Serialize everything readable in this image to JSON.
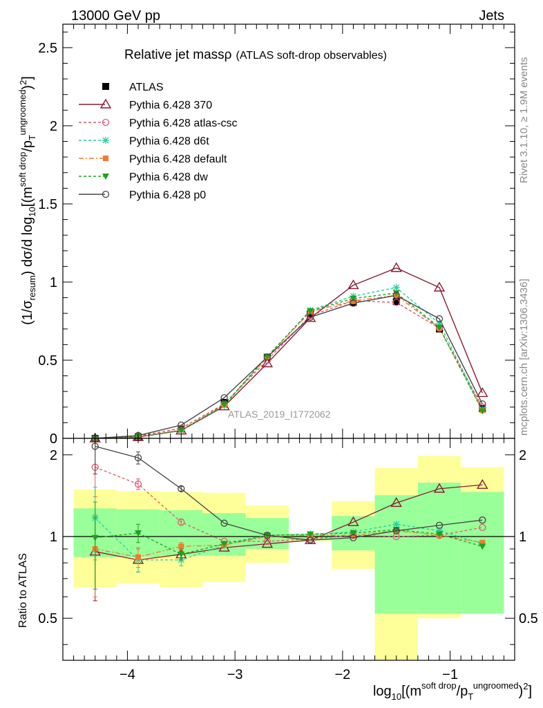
{
  "header": {
    "left": "13000 GeV pp",
    "right": "Jets",
    "rivet": "Rivet 3.1.10, ≥ 1.9M events",
    "mcplots": "mcplots.cern.ch [arXiv:1306.3436]",
    "analysis": "ATLAS_2019_I1772062"
  },
  "colors": {
    "atlas": "#000000",
    "p370": "#8b1a2e",
    "atlascsc": "#e8546e",
    "d6t": "#1fd1a0",
    "default": "#f07c2c",
    "dw": "#1ea21e",
    "p0": "#444444",
    "band_inner": "#99ff99",
    "band_outer": "#ffff99"
  },
  "chart_data": [
    {
      "type": "line",
      "title": "Relative jet massρ",
      "subtitle": "(ATLAS soft-drop observables)",
      "ylabel": "(1/σresum) dσ/d log10[(m soft drop/p T ungroomed)2]",
      "xlabel": "log10[(m soft drop/p T ungroomed)2]",
      "xlim": [
        -4.6,
        -0.4
      ],
      "ylim": [
        0,
        2.65
      ],
      "yticks": [
        "0",
        "0.5",
        "1",
        "1.5",
        "2",
        "2.5"
      ],
      "x": [
        -4.3,
        -3.9,
        -3.5,
        -3.1,
        -2.7,
        -2.3,
        -1.9,
        -1.5,
        -1.1,
        -0.7
      ],
      "series": [
        {
          "name": "ATLAS",
          "values": [
            0.0,
            0.01,
            0.06,
            0.23,
            0.52,
            0.8,
            0.87,
            0.875,
            0.7,
            0.19
          ],
          "marker": "square"
        },
        {
          "name": "Pythia 6.428 370",
          "values": [
            0.0,
            0.008,
            0.05,
            0.205,
            0.48,
            0.77,
            0.98,
            1.09,
            0.965,
            0.29
          ],
          "marker": "triangle"
        },
        {
          "name": "Pythia 6.428 atlas-csc",
          "values": [
            0.0,
            0.015,
            0.065,
            0.22,
            0.5,
            0.785,
            0.88,
            0.87,
            0.705,
            0.2
          ],
          "marker": "circle-open"
        },
        {
          "name": "Pythia 6.428 d6t",
          "values": [
            0.0,
            0.01,
            0.05,
            0.21,
            0.52,
            0.82,
            0.91,
            0.965,
            0.735,
            0.185
          ],
          "marker": "star"
        },
        {
          "name": "Pythia 6.428 default",
          "values": [
            0.0,
            0.008,
            0.055,
            0.215,
            0.52,
            0.81,
            0.88,
            0.915,
            0.705,
            0.18
          ],
          "marker": "square-small"
        },
        {
          "name": "Pythia 6.428 dw",
          "values": [
            0.0,
            0.012,
            0.05,
            0.215,
            0.525,
            0.815,
            0.895,
            0.93,
            0.71,
            0.175
          ],
          "marker": "triangle-down"
        },
        {
          "name": "Pythia 6.428 p0",
          "values": [
            0.0,
            0.018,
            0.085,
            0.26,
            0.52,
            0.775,
            0.865,
            0.915,
            0.765,
            0.22
          ],
          "marker": "circle-open"
        }
      ]
    },
    {
      "type": "line",
      "ylabel": "Ratio to ATLAS",
      "xlabel": "log10[(m soft drop/p T ungroomed)2]",
      "xlim": [
        -4.6,
        -0.4
      ],
      "ylim": [
        0.35,
        2.3
      ],
      "yticks": [
        "0.5",
        "1",
        "2"
      ],
      "xticks": [
        "−4",
        "−3",
        "−2",
        "−1"
      ],
      "bands": {
        "edges": [
          -4.5,
          -4.1,
          -3.7,
          -3.3,
          -2.9,
          -2.5,
          -2.1,
          -1.7,
          -1.3,
          -0.9,
          -0.5
        ],
        "inner_low": [
          0.84,
          0.84,
          0.85,
          0.85,
          0.9,
          0.97,
          0.89,
          0.52,
          0.52,
          0.52
        ],
        "inner_high": [
          1.27,
          1.26,
          1.25,
          1.22,
          1.17,
          1.02,
          1.19,
          1.42,
          1.58,
          1.46
        ],
        "outer_low": [
          0.65,
          0.67,
          0.65,
          0.68,
          0.8,
          0.96,
          0.76,
          0.35,
          0.5,
          0.66
        ],
        "outer_high": [
          1.49,
          1.47,
          1.46,
          1.45,
          1.3,
          1.03,
          1.35,
          1.79,
          1.98,
          1.8
        ]
      },
      "series": [
        {
          "name": "Pythia 6.428 370",
          "values": [
            0.88,
            0.82,
            0.86,
            0.91,
            0.94,
            0.97,
            1.13,
            1.33,
            1.5,
            1.55
          ],
          "err": [
            0.3,
            0.08,
            0.03,
            0.02,
            0.01,
            0.01,
            0.01,
            0.01,
            0.01,
            0.01
          ]
        },
        {
          "name": "Pythia 6.428 atlas-csc",
          "values": [
            1.8,
            1.56,
            1.13,
            0.96,
            0.96,
            0.98,
            1.01,
            1.0,
            1.01,
            1.08
          ],
          "err": [
            0.4,
            0.07,
            0.03,
            0.01,
            0.01,
            0.01,
            0.01,
            0.01,
            0.01,
            0.01
          ]
        },
        {
          "name": "Pythia 6.428 d6t",
          "values": [
            1.17,
            0.82,
            0.82,
            0.93,
            1.01,
            1.02,
            1.04,
            1.11,
            1.05,
            0.94
          ],
          "err": [
            0.35,
            0.08,
            0.04,
            0.02,
            0.01,
            0.01,
            0.01,
            0.01,
            0.01,
            0.01
          ]
        },
        {
          "name": "Pythia 6.428 default",
          "values": [
            0.9,
            0.84,
            0.92,
            0.93,
            1.0,
            1.01,
            1.01,
            1.05,
            1.01,
            0.95
          ],
          "err": [
            0.3,
            0.07,
            0.03,
            0.02,
            0.01,
            0.01,
            0.01,
            0.01,
            0.01,
            0.01
          ]
        },
        {
          "name": "Pythia 6.428 dw",
          "values": [
            0.99,
            1.03,
            0.86,
            0.94,
            1.01,
            1.02,
            1.03,
            1.06,
            1.02,
            0.92
          ],
          "err": [
            0.35,
            0.08,
            0.04,
            0.02,
            0.01,
            0.01,
            0.01,
            0.01,
            0.01,
            0.01
          ]
        },
        {
          "name": "Pythia 6.428 p0",
          "values": [
            2.15,
            1.95,
            1.5,
            1.12,
            1.01,
            0.97,
            0.99,
            1.05,
            1.1,
            1.15
          ],
          "err": [
            0.45,
            0.1,
            0.03,
            0.01,
            0.01,
            0.01,
            0.01,
            0.01,
            0.01,
            0.01
          ]
        }
      ]
    }
  ]
}
